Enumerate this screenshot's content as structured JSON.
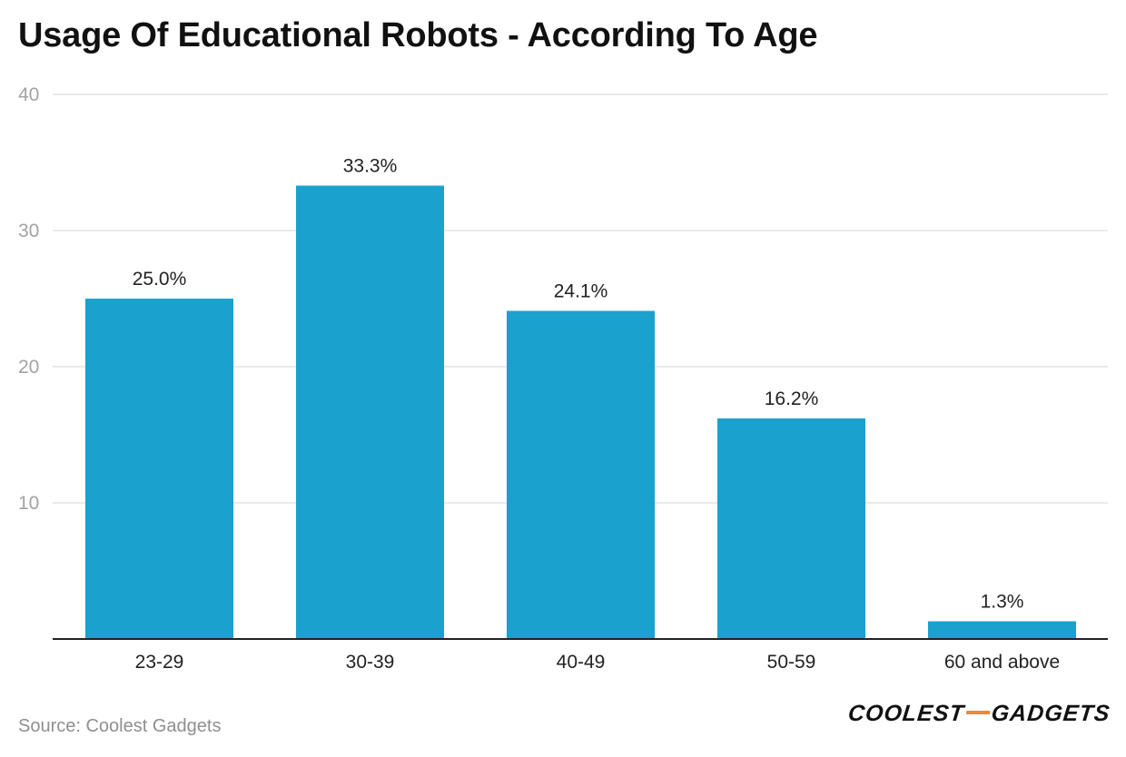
{
  "chart_data": {
    "type": "bar",
    "title": "Usage Of Educational Robots - According To Age",
    "xlabel": "",
    "ylabel": "",
    "categories": [
      "23-29",
      "30-39",
      "40-49",
      "50-59",
      "60 and above"
    ],
    "values": [
      25.0,
      33.3,
      24.1,
      16.2,
      1.3
    ],
    "data_labels": [
      "25.0%",
      "33.3%",
      "24.1%",
      "16.2%",
      "1.3%"
    ],
    "ylim": [
      0,
      40
    ],
    "yticks": [
      10,
      20,
      30,
      40
    ],
    "ytick_labels": [
      "10",
      "20",
      "30",
      "40"
    ],
    "grid": true,
    "legend": "none",
    "bar_color": "#1aa1ce"
  },
  "footer": {
    "source": "Source: Coolest Gadgets",
    "logo_text_left": "COOLEST",
    "logo_text_right": "GADGETS",
    "logo_dash_color": "#e8893c"
  },
  "colors": {
    "gridline": "#e3e3e3",
    "axis": "#222222",
    "tick_label": "#a3a3a3",
    "category_label": "#222222",
    "value_label": "#222222"
  }
}
